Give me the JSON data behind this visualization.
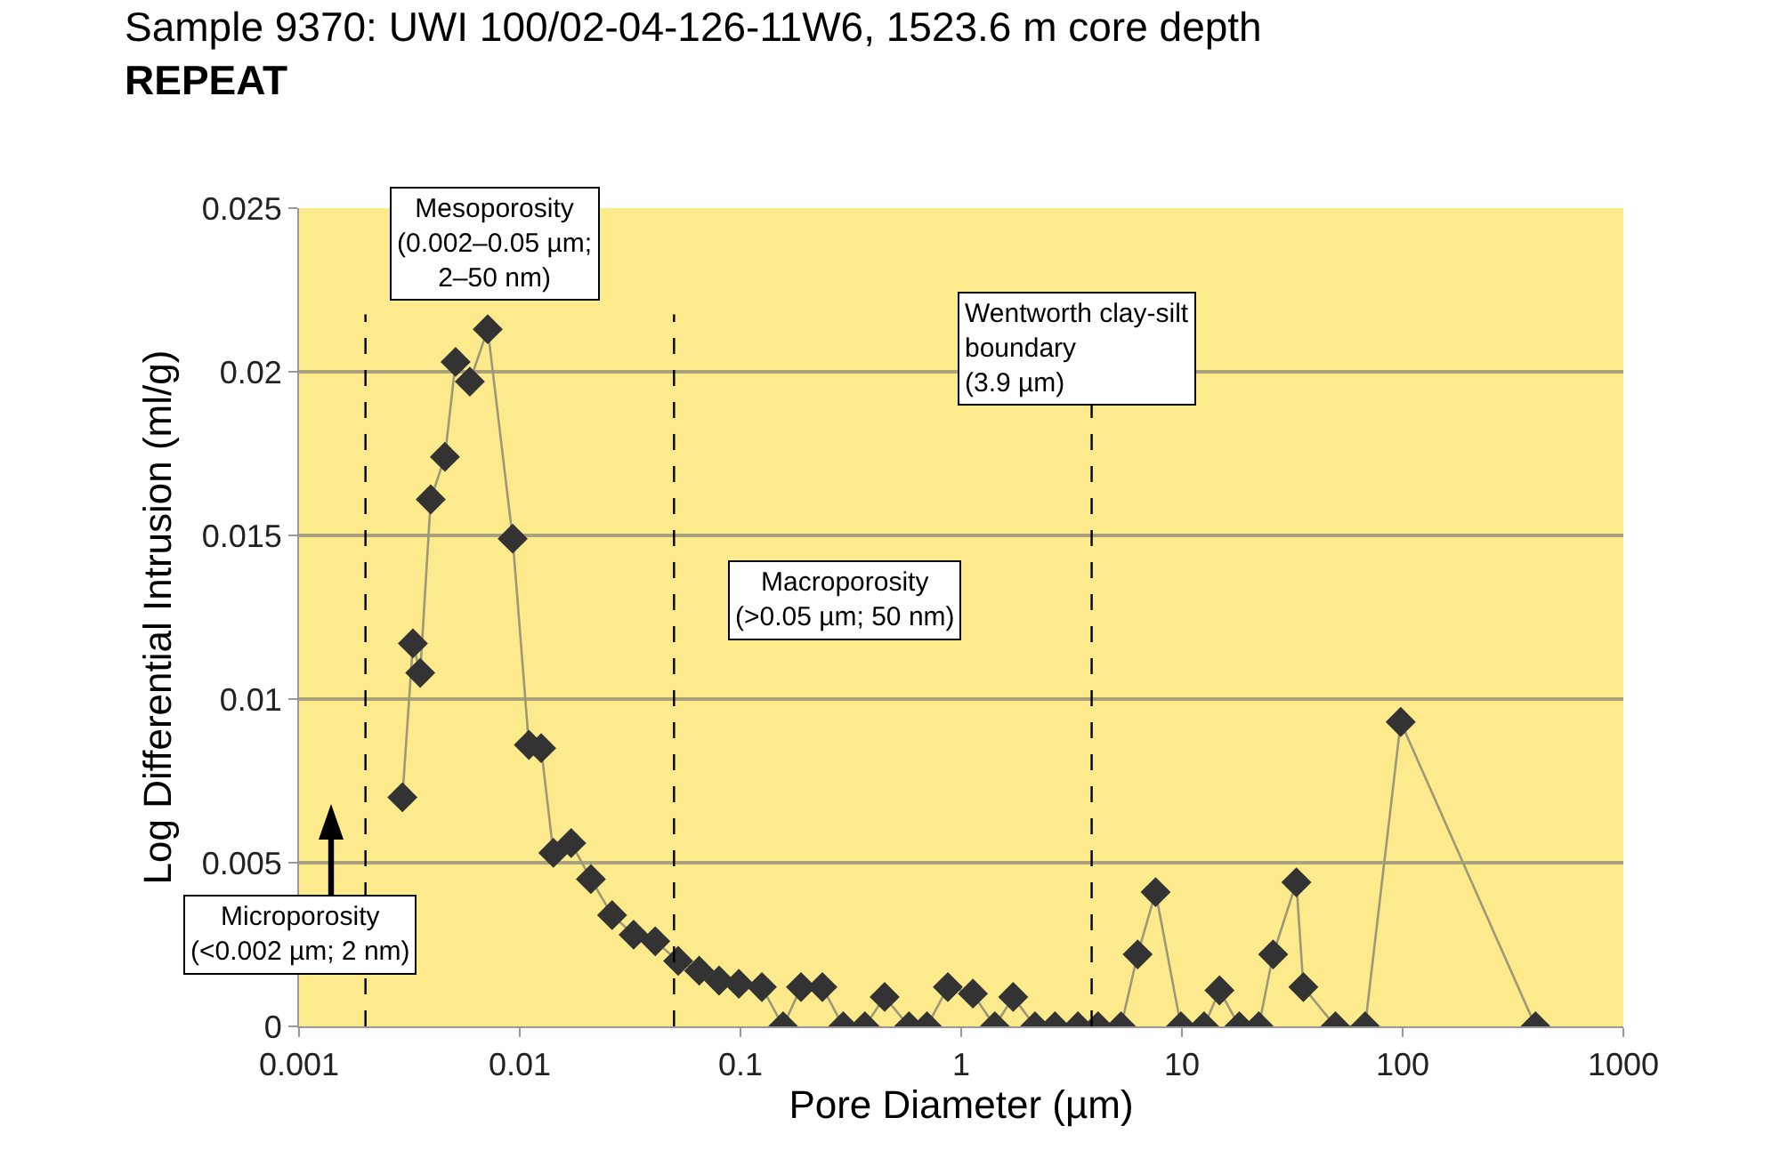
{
  "chart_data": {
    "type": "line",
    "title": "Sample 9370: UWI 100/02-04-126-11W6, 1523.6 m core depth",
    "subtitle": "REPEAT",
    "xlabel": "Pore Diameter (µm)",
    "ylabel": "Log Differential Intrusion (ml/g)",
    "log": "x",
    "grid": "y",
    "marker": "diamond",
    "line_style": "solid",
    "xlim": [
      0.001,
      1000
    ],
    "xticks": [
      0.001,
      0.01,
      0.1,
      1,
      10,
      100,
      1000
    ],
    "ylim": [
      0,
      0.025
    ],
    "yticks": [
      0,
      0.005,
      0.01,
      0.015,
      0.02,
      0.025
    ],
    "x": [
      0.00294,
      0.00328,
      0.00354,
      0.00395,
      0.00458,
      0.00512,
      0.00594,
      0.00716,
      0.00929,
      0.011,
      0.0125,
      0.0142,
      0.0171,
      0.021,
      0.0262,
      0.0328,
      0.0411,
      0.0522,
      0.065,
      0.08,
      0.0983,
      0.125,
      0.156,
      0.188,
      0.235,
      0.292,
      0.366,
      0.45,
      0.58,
      0.7,
      0.87,
      1.13,
      1.42,
      1.72,
      2.16,
      2.66,
      3.38,
      4.17,
      5.3,
      6.3,
      7.6,
      9.9,
      12.6,
      14.8,
      18.2,
      22.3,
      25.9,
      33,
      35.5,
      49.6,
      67.6,
      98,
      400
    ],
    "series": [
      {
        "color": "#333333",
        "values": [
          0.007,
          0.0117,
          0.0108,
          0.0161,
          0.0174,
          0.0203,
          0.0197,
          0.0213,
          0.0149,
          0.0086,
          0.0085,
          0.0053,
          0.0056,
          0.0045,
          0.0034,
          0.0028,
          0.0026,
          0.002,
          0.0017,
          0.0014,
          0.0013,
          0.0012,
          0,
          0.0012,
          0.0012,
          0,
          0,
          0.0009,
          0,
          0,
          0.0012,
          0.001,
          0,
          0.0009,
          0,
          0,
          0,
          0,
          0,
          0.0022,
          0.0041,
          0,
          0,
          0.0011,
          0,
          0,
          0.0022,
          0.0044,
          0.0012,
          0,
          0,
          0.0093,
          0
        ]
      }
    ],
    "ref_lines": [
      {
        "axis": "x",
        "value": 0.002,
        "color": "#000000",
        "line_style": "dashed"
      },
      {
        "axis": "x",
        "value": 0.05,
        "color": "#000000",
        "line_style": "dashed"
      },
      {
        "axis": "x",
        "value": 3.9,
        "color": "#000000",
        "line_style": "dashed",
        "label": "Wentworth clay-silt boundary (3.9 µm)"
      }
    ],
    "annotations": [
      "Mesoporosity (0.002–0.05 µm; 2–50 nm)",
      "Macroporosity (>0.05 µm; 50 nm)",
      "Microporosity (<0.002 µm; 2 nm)"
    ]
  }
}
